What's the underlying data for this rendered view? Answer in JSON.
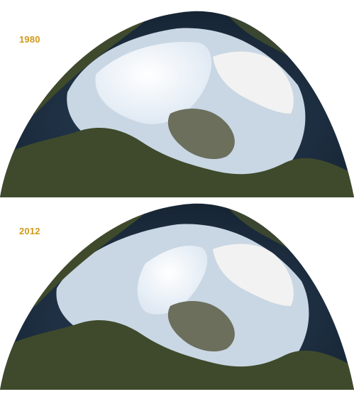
{
  "panels": [
    {
      "year_label": "1980"
    },
    {
      "year_label": "2012"
    }
  ],
  "colors": {
    "year_label": "#d19a1a",
    "ocean": "#1f3247",
    "land": "#3f4a2c",
    "sea_ice": "#c9d7e4",
    "multiyear_ice": "#eef4fa",
    "greenland_ice": "#f2f2f2"
  }
}
